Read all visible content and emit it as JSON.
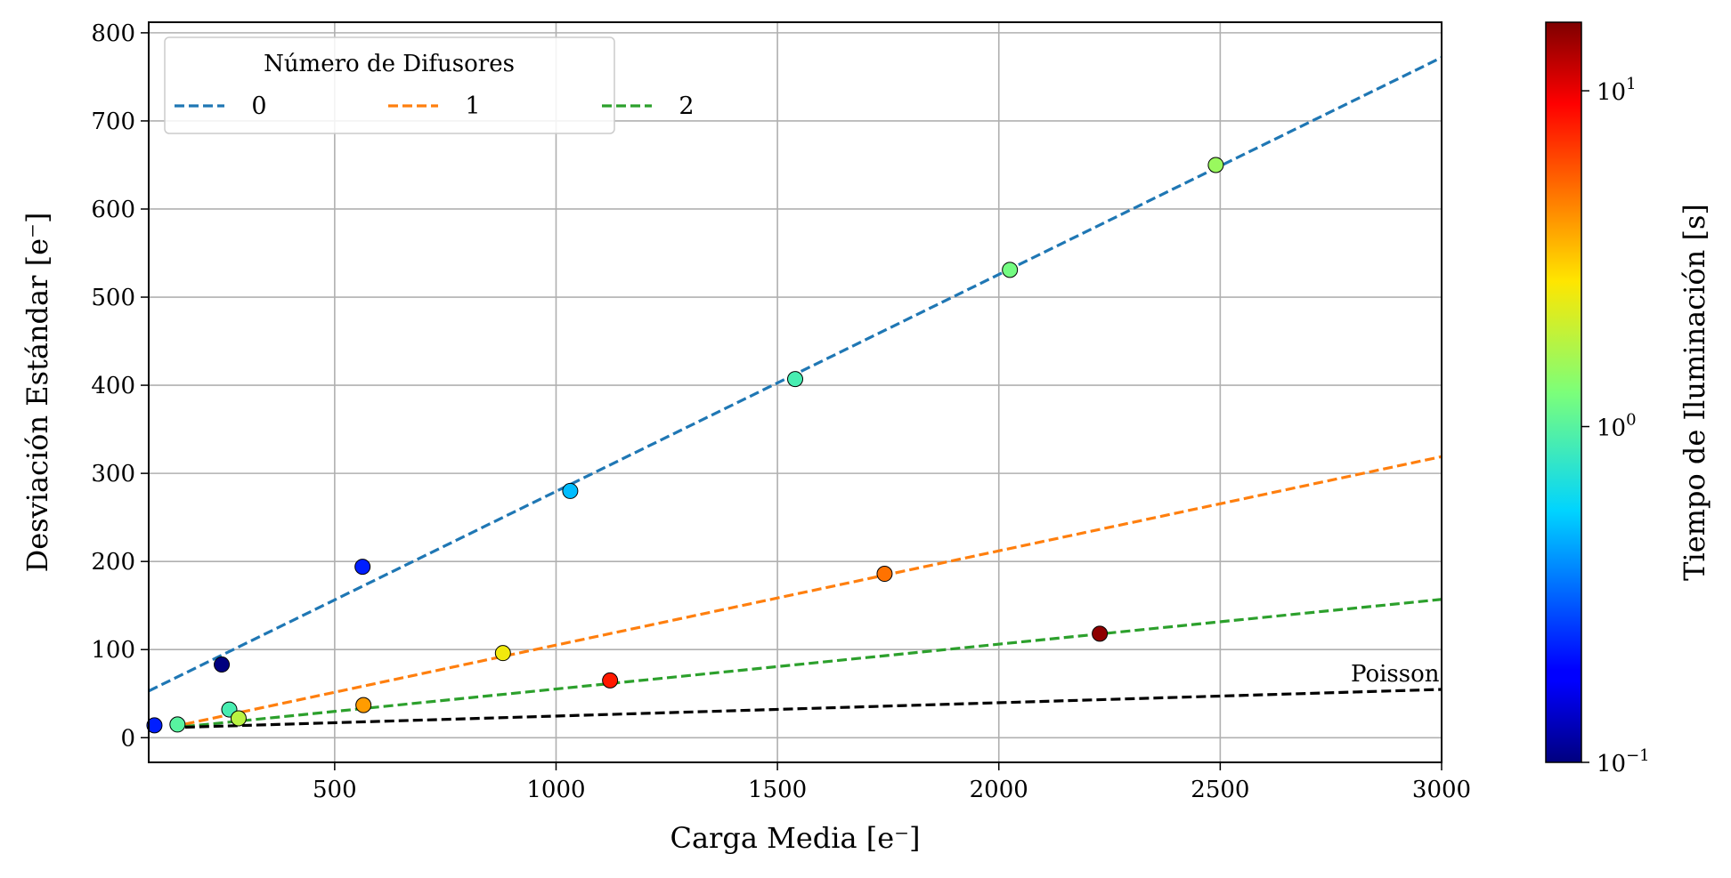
{
  "chart_data": {
    "type": "scatter",
    "xlabel": "Carga Media [e⁻]",
    "ylabel": "Desviación Estándar [e⁻]",
    "xlim": [
      80,
      3000
    ],
    "ylim": [
      -28,
      812
    ],
    "xticks": [
      500,
      1000,
      1500,
      2000,
      2500,
      3000
    ],
    "xtick_labels": [
      "500",
      "1000",
      "1500",
      "2000",
      "2500",
      "3000"
    ],
    "yticks": [
      0,
      100,
      200,
      300,
      400,
      500,
      600,
      700,
      800
    ],
    "ytick_labels": [
      "0",
      "100",
      "200",
      "300",
      "400",
      "500",
      "600",
      "700",
      "800"
    ],
    "grid": true,
    "legend": {
      "title": "Número de Difusores",
      "placement": "top-left",
      "entries": [
        {
          "label": "0",
          "color": "#1f77b4"
        },
        {
          "label": "1",
          "color": "#ff7f0e"
        },
        {
          "label": "2",
          "color": "#2ca02c"
        }
      ]
    },
    "fit_lines": [
      {
        "name": "0",
        "color": "#1f77b4",
        "x": [
          80,
          3000
        ],
        "y": [
          53,
          772
        ]
      },
      {
        "name": "1",
        "color": "#ff7f0e",
        "x": [
          130,
          3000
        ],
        "y": [
          12,
          319
        ]
      },
      {
        "name": "2",
        "color": "#2ca02c",
        "x": [
          130,
          3000
        ],
        "y": [
          11,
          157
        ]
      },
      {
        "name": "Poisson",
        "color": "#000000",
        "x": [
          130,
          3000
        ],
        "y": [
          11.4,
          54.8
        ]
      }
    ],
    "annotations": [
      {
        "text": "Poisson",
        "x": 2995,
        "y": 64
      }
    ],
    "points": [
      {
        "x": 93,
        "y": 14,
        "t": 0.22
      },
      {
        "x": 245,
        "y": 83,
        "t": 0.1
      },
      {
        "x": 563,
        "y": 194,
        "t": 0.22
      },
      {
        "x": 1032,
        "y": 280,
        "t": 0.5
      },
      {
        "x": 1540,
        "y": 407,
        "t": 0.9
      },
      {
        "x": 2025,
        "y": 531,
        "t": 1.2
      },
      {
        "x": 2490,
        "y": 650,
        "t": 1.5
      },
      {
        "x": 145,
        "y": 15,
        "t": 1.0
      },
      {
        "x": 262,
        "y": 32,
        "t": 0.9
      },
      {
        "x": 283,
        "y": 22,
        "t": 1.8
      },
      {
        "x": 565,
        "y": 37,
        "t": 4.0
      },
      {
        "x": 880,
        "y": 96,
        "t": 2.5
      },
      {
        "x": 1122,
        "y": 65,
        "t": 8.0
      },
      {
        "x": 1742,
        "y": 186,
        "t": 5.0
      },
      {
        "x": 2228,
        "y": 118,
        "t": 15.0
      }
    ],
    "colorbar": {
      "label": "Tiempo de Iluminación [s]",
      "scale": "log",
      "range": [
        0.1,
        16
      ],
      "colormap": "jet",
      "ticks": [
        {
          "value": 0.1,
          "base": "10",
          "exp": "−1"
        },
        {
          "value": 1,
          "base": "10",
          "exp": "0"
        },
        {
          "value": 10,
          "base": "10",
          "exp": "1"
        }
      ]
    }
  }
}
